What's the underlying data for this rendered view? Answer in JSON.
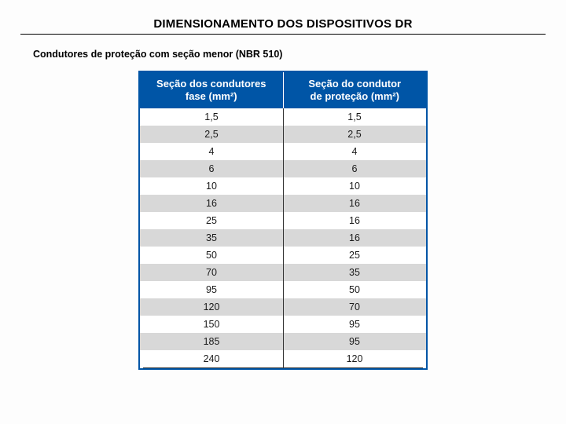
{
  "page": {
    "title": "DIMENSIONAMENTO DOS DISPOSITIVOS DR",
    "subtitle": "Condutores de proteção com seção menor (NBR 510)"
  },
  "table": {
    "type": "table",
    "header_bg": "#0055a6",
    "header_fg": "#ffffff",
    "border_color": "#0055a6",
    "stripe_color": "#d8d8d8",
    "columns": [
      {
        "label_line1": "Seção dos condutores",
        "label_line2": "fase (mm²)"
      },
      {
        "label_line1": "Seção do condutor",
        "label_line2": "de proteção (mm²)"
      }
    ],
    "rows": [
      {
        "fase": "1,5",
        "prot": "1,5",
        "stripe": false
      },
      {
        "fase": "2,5",
        "prot": "2,5",
        "stripe": true
      },
      {
        "fase": "4",
        "prot": "4",
        "stripe": false
      },
      {
        "fase": "6",
        "prot": "6",
        "stripe": true
      },
      {
        "fase": "10",
        "prot": "10",
        "stripe": false
      },
      {
        "fase": "16",
        "prot": "16",
        "stripe": true
      },
      {
        "fase": "25",
        "prot": "16",
        "stripe": false
      },
      {
        "fase": "35",
        "prot": "16",
        "stripe": true
      },
      {
        "fase": "50",
        "prot": "25",
        "stripe": false
      },
      {
        "fase": "70",
        "prot": "35",
        "stripe": true
      },
      {
        "fase": "95",
        "prot": "50",
        "stripe": false
      },
      {
        "fase": "120",
        "prot": "70",
        "stripe": true
      },
      {
        "fase": "150",
        "prot": "95",
        "stripe": false
      },
      {
        "fase": "185",
        "prot": "95",
        "stripe": true
      },
      {
        "fase": "240",
        "prot": "120",
        "stripe": false
      }
    ]
  }
}
